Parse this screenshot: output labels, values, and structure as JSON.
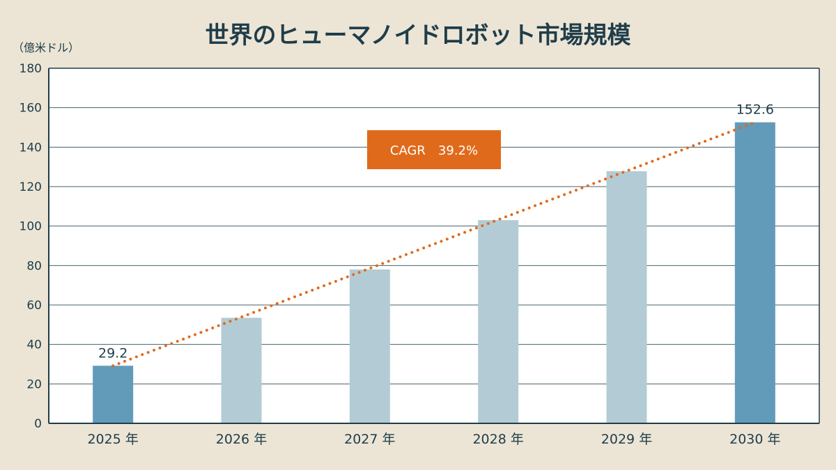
{
  "chart_data": {
    "type": "bar",
    "title": "世界のヒューマノイドロボット市場規模",
    "unit_label": "（億米ドル）",
    "categories": [
      "2025 年",
      "2026 年",
      "2027 年",
      "2028 年",
      "2029 年",
      "2030 年"
    ],
    "values": [
      29.2,
      53.5,
      78.0,
      103.0,
      127.8,
      152.6
    ],
    "highlighted": [
      true,
      false,
      false,
      false,
      false,
      true
    ],
    "data_labels": [
      "29.2",
      "",
      "",
      "",
      "",
      "152.6"
    ],
    "ylim": [
      0,
      180
    ],
    "yticks": [
      0,
      20,
      40,
      60,
      80,
      100,
      120,
      140,
      160,
      180
    ],
    "grid": true,
    "trendline": {
      "style": "dotted",
      "from_index": 0,
      "to_index": 5
    },
    "annotation": "CAGR　39.2%",
    "colors": {
      "background": "#ece5d5",
      "plot_background": "#ffffff",
      "bar_highlight": "#629bba",
      "bar_normal": "#b3cbd5",
      "trendline": "#e06a1b",
      "annotation_bg": "#e06a1b",
      "text": "#1f3d4a"
    }
  }
}
